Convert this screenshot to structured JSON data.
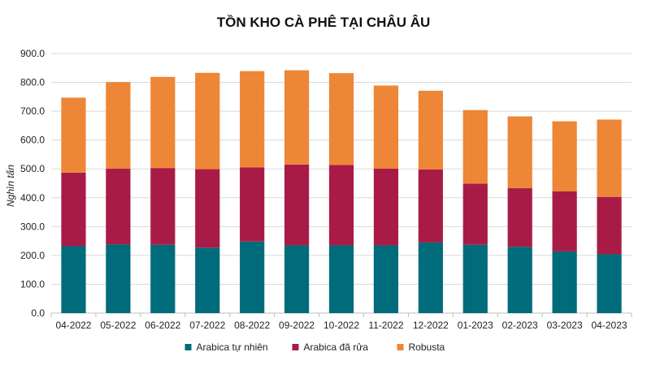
{
  "chart_data": {
    "type": "bar",
    "stacked": true,
    "title": "TỒN KHO CÀ PHÊ TẠI CHÂU ÂU",
    "xlabel": "",
    "ylabel": "Nghìn tấn",
    "ylim": [
      0,
      900
    ],
    "yticks": [
      "0.0",
      "100.0",
      "200.0",
      "300.0",
      "400.0",
      "500.0",
      "600.0",
      "700.0",
      "800.0",
      "900.0"
    ],
    "grid": true,
    "legend_position": "bottom",
    "categories": [
      "04-2022",
      "05-2022",
      "06-2022",
      "07-2022",
      "08-2022",
      "09-2022",
      "10-2022",
      "11-2022",
      "12-2022",
      "01-2023",
      "02-2023",
      "03-2023",
      "04-2023"
    ],
    "series": [
      {
        "name": "Arabica tự nhiên",
        "color": "#006b7a",
        "values": [
          232,
          238,
          237,
          227,
          248,
          235,
          235,
          235,
          245,
          237,
          230,
          214,
          204
        ]
      },
      {
        "name": "Arabica đã rửa",
        "color": "#a91b47",
        "values": [
          255,
          263,
          266,
          272,
          257,
          280,
          279,
          266,
          253,
          212,
          203,
          208,
          199
        ]
      },
      {
        "name": "Robusta",
        "color": "#ed8636",
        "values": [
          260,
          300,
          316,
          334,
          334,
          327,
          318,
          288,
          273,
          255,
          249,
          243,
          268
        ]
      }
    ]
  }
}
